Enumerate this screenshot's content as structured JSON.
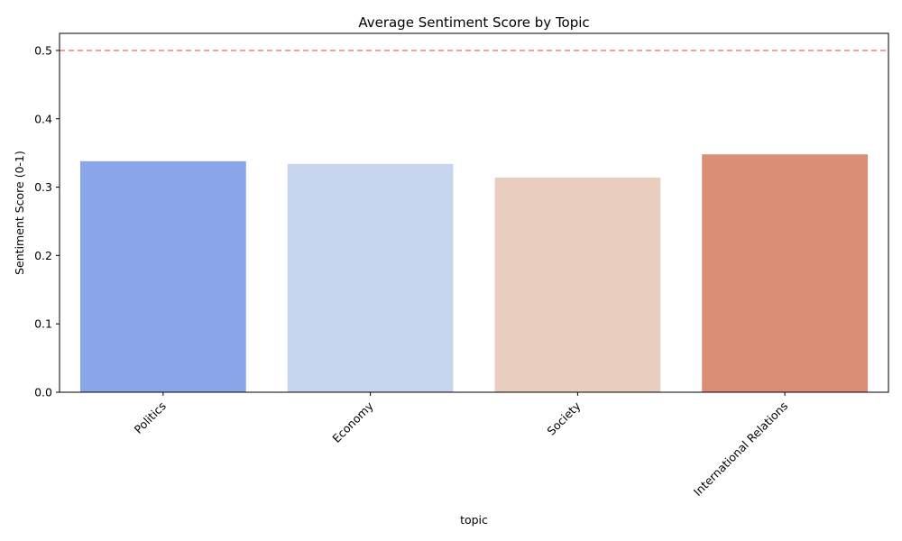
{
  "chart_data": {
    "type": "bar",
    "title": "Average Sentiment Score by Topic",
    "xlabel": "topic",
    "ylabel": "Sentiment Score (0-1)",
    "categories": [
      "Politics",
      "Economy",
      "Society",
      "International Relations"
    ],
    "values": [
      0.338,
      0.334,
      0.314,
      0.348
    ],
    "bar_colors": [
      "#8aa6e8",
      "#c7d5ef",
      "#e9cec0",
      "#da8e76"
    ],
    "ylim": [
      0,
      0.525
    ],
    "yticks": [
      "0.0",
      "0.1",
      "0.2",
      "0.3",
      "0.4",
      "0.5"
    ],
    "ytick_values": [
      0,
      0.1,
      0.2,
      0.3,
      0.4,
      0.5
    ],
    "reference_line": {
      "value": 0.5,
      "style": "dashed",
      "color": "#f08080"
    },
    "grid": false,
    "legend": "none"
  }
}
